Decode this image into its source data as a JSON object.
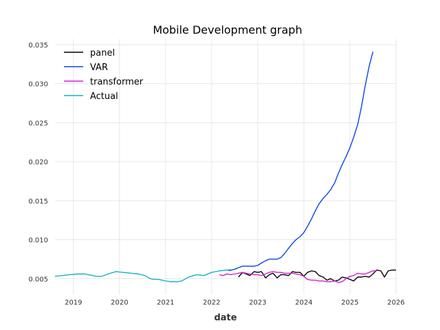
{
  "chart_data": {
    "type": "line",
    "title": "Mobile Development graph",
    "xlabel": "date",
    "ylabel": "",
    "x_ticks": [
      "2019",
      "2020",
      "2021",
      "2022",
      "2023",
      "2024",
      "2025",
      "2026"
    ],
    "y_ticks": [
      "0.005",
      "0.010",
      "0.015",
      "0.020",
      "0.025",
      "0.030",
      "0.035"
    ],
    "xlim": [
      2018.6,
      2026.0
    ],
    "ylim": [
      0.003,
      0.0357
    ],
    "grid": true,
    "legend_position": "top-left",
    "series": [
      {
        "name": "panel",
        "color": "#000000",
        "points": [
          [
            2022.58,
            0.0052
          ],
          [
            2022.67,
            0.0058
          ],
          [
            2022.75,
            0.0056
          ],
          [
            2022.83,
            0.0054
          ],
          [
            2022.92,
            0.0059
          ],
          [
            2023.0,
            0.0058
          ],
          [
            2023.08,
            0.0059
          ],
          [
            2023.17,
            0.0051
          ],
          [
            2023.25,
            0.0055
          ],
          [
            2023.33,
            0.0057
          ],
          [
            2023.42,
            0.0051
          ],
          [
            2023.5,
            0.0055
          ],
          [
            2023.58,
            0.0055
          ],
          [
            2023.67,
            0.0054
          ],
          [
            2023.75,
            0.0059
          ],
          [
            2023.83,
            0.0058
          ],
          [
            2023.92,
            0.0058
          ],
          [
            2024.0,
            0.0053
          ],
          [
            2024.08,
            0.0058
          ],
          [
            2024.17,
            0.006
          ],
          [
            2024.25,
            0.0059
          ],
          [
            2024.33,
            0.0054
          ],
          [
            2024.42,
            0.0052
          ],
          [
            2024.5,
            0.0048
          ],
          [
            2024.58,
            0.005
          ],
          [
            2024.67,
            0.0047
          ],
          [
            2024.75,
            0.0048
          ],
          [
            2024.83,
            0.0052
          ],
          [
            2024.92,
            0.0051
          ],
          [
            2025.0,
            0.0049
          ],
          [
            2025.08,
            0.0047
          ],
          [
            2025.17,
            0.0052
          ],
          [
            2025.25,
            0.0052
          ],
          [
            2025.33,
            0.0053
          ],
          [
            2025.42,
            0.0052
          ],
          [
            2025.5,
            0.0056
          ],
          [
            2025.58,
            0.0061
          ],
          [
            2025.67,
            0.006
          ],
          [
            2025.75,
            0.0052
          ],
          [
            2025.83,
            0.006
          ],
          [
            2025.92,
            0.0061
          ],
          [
            2026.0,
            0.0061
          ]
        ]
      },
      {
        "name": "VAR",
        "color": "#0b43e8",
        "points": [
          [
            2022.33,
            0.0061
          ],
          [
            2022.42,
            0.0061
          ],
          [
            2022.5,
            0.0062
          ],
          [
            2022.58,
            0.0064
          ],
          [
            2022.67,
            0.0066
          ],
          [
            2022.75,
            0.0066
          ],
          [
            2022.83,
            0.0066
          ],
          [
            2022.92,
            0.0066
          ],
          [
            2023.0,
            0.0067
          ],
          [
            2023.08,
            0.007
          ],
          [
            2023.17,
            0.0073
          ],
          [
            2023.25,
            0.0075
          ],
          [
            2023.33,
            0.0075
          ],
          [
            2023.42,
            0.0075
          ],
          [
            2023.5,
            0.0077
          ],
          [
            2023.58,
            0.0082
          ],
          [
            2023.67,
            0.0089
          ],
          [
            2023.75,
            0.0095
          ],
          [
            2023.83,
            0.01
          ],
          [
            2023.92,
            0.0104
          ],
          [
            2024.0,
            0.0109
          ],
          [
            2024.08,
            0.0117
          ],
          [
            2024.17,
            0.0127
          ],
          [
            2024.25,
            0.0137
          ],
          [
            2024.33,
            0.0146
          ],
          [
            2024.42,
            0.0153
          ],
          [
            2024.5,
            0.0158
          ],
          [
            2024.58,
            0.0164
          ],
          [
            2024.67,
            0.0173
          ],
          [
            2024.75,
            0.0185
          ],
          [
            2024.83,
            0.0196
          ],
          [
            2024.92,
            0.0207
          ],
          [
            2025.0,
            0.0218
          ],
          [
            2025.08,
            0.0231
          ],
          [
            2025.17,
            0.0248
          ],
          [
            2025.25,
            0.027
          ],
          [
            2025.33,
            0.0297
          ],
          [
            2025.42,
            0.0323
          ],
          [
            2025.5,
            0.0341
          ]
        ]
      },
      {
        "name": "transformer",
        "color": "#d21fd1",
        "points": [
          [
            2022.17,
            0.0055
          ],
          [
            2022.25,
            0.0054
          ],
          [
            2022.33,
            0.0056
          ],
          [
            2022.42,
            0.0055
          ],
          [
            2022.5,
            0.0056
          ],
          [
            2022.58,
            0.0057
          ],
          [
            2022.67,
            0.0058
          ],
          [
            2022.75,
            0.0057
          ],
          [
            2022.83,
            0.0056
          ],
          [
            2022.92,
            0.0055
          ],
          [
            2023.0,
            0.0055
          ],
          [
            2023.08,
            0.0054
          ],
          [
            2023.17,
            0.0056
          ],
          [
            2023.25,
            0.0058
          ],
          [
            2023.33,
            0.0059
          ],
          [
            2023.42,
            0.0058
          ],
          [
            2023.5,
            0.0058
          ],
          [
            2023.58,
            0.0057
          ],
          [
            2023.67,
            0.0057
          ],
          [
            2023.75,
            0.0057
          ],
          [
            2023.83,
            0.0056
          ],
          [
            2023.92,
            0.0055
          ],
          [
            2024.0,
            0.0053
          ],
          [
            2024.08,
            0.0049
          ],
          [
            2024.17,
            0.0048
          ],
          [
            2024.25,
            0.0048
          ],
          [
            2024.33,
            0.0047
          ],
          [
            2024.42,
            0.0047
          ],
          [
            2024.5,
            0.0046
          ],
          [
            2024.58,
            0.0046
          ],
          [
            2024.67,
            0.0047
          ],
          [
            2024.75,
            0.0045
          ],
          [
            2024.83,
            0.0046
          ],
          [
            2024.92,
            0.005
          ],
          [
            2025.0,
            0.0053
          ],
          [
            2025.08,
            0.0054
          ],
          [
            2025.17,
            0.0057
          ],
          [
            2025.25,
            0.0056
          ],
          [
            2025.33,
            0.0056
          ],
          [
            2025.42,
            0.0058
          ],
          [
            2025.5,
            0.006
          ],
          [
            2025.58,
            0.006
          ]
        ]
      },
      {
        "name": "Actual",
        "color": "#17b0c2",
        "points": [
          [
            2018.6,
            0.0053
          ],
          [
            2018.75,
            0.0054
          ],
          [
            2018.92,
            0.0055
          ],
          [
            2019.08,
            0.0056
          ],
          [
            2019.25,
            0.0056
          ],
          [
            2019.42,
            0.0054
          ],
          [
            2019.5,
            0.0053
          ],
          [
            2019.62,
            0.0053
          ],
          [
            2019.75,
            0.0056
          ],
          [
            2019.92,
            0.0059
          ],
          [
            2020.08,
            0.0058
          ],
          [
            2020.25,
            0.0057
          ],
          [
            2020.42,
            0.0056
          ],
          [
            2020.55,
            0.0054
          ],
          [
            2020.67,
            0.005
          ],
          [
            2020.75,
            0.0049
          ],
          [
            2020.85,
            0.0049
          ],
          [
            2021.0,
            0.0047
          ],
          [
            2021.12,
            0.0046
          ],
          [
            2021.25,
            0.0046
          ],
          [
            2021.35,
            0.0047
          ],
          [
            2021.5,
            0.0052
          ],
          [
            2021.67,
            0.0055
          ],
          [
            2021.83,
            0.0054
          ],
          [
            2022.0,
            0.0058
          ],
          [
            2022.17,
            0.006
          ],
          [
            2022.33,
            0.0061
          ],
          [
            2022.42,
            0.006
          ]
        ]
      }
    ]
  }
}
